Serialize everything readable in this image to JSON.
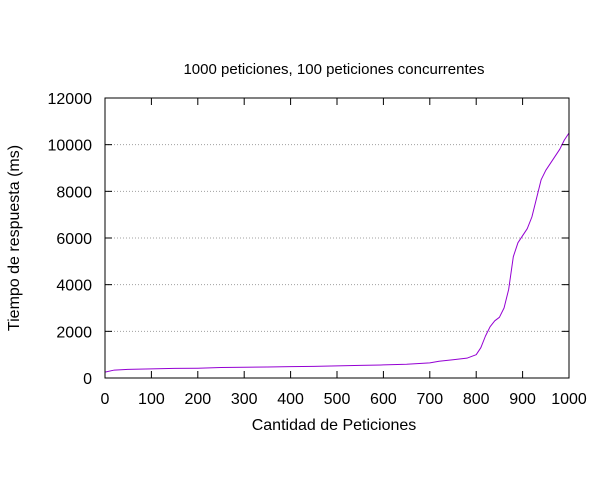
{
  "chart_data": {
    "type": "line",
    "title": "1000 peticiones, 100 peticiones concurrentes",
    "xlabel": "Cantidad de Peticiones",
    "ylabel": "Tiempo de respuesta (ms)",
    "xlim": [
      0,
      1000
    ],
    "ylim": [
      0,
      12000
    ],
    "x_ticks": [
      0,
      100,
      200,
      300,
      400,
      500,
      600,
      700,
      800,
      900,
      1000
    ],
    "y_ticks": [
      0,
      2000,
      4000,
      6000,
      8000,
      10000,
      12000
    ],
    "grid": "horizontal dotted",
    "legend": "none",
    "series": [
      {
        "color": "#9400d3",
        "x": [
          0,
          20,
          50,
          100,
          150,
          200,
          250,
          300,
          350,
          400,
          450,
          500,
          550,
          600,
          650,
          700,
          720,
          750,
          780,
          800,
          810,
          820,
          830,
          840,
          850,
          860,
          870,
          880,
          890,
          900,
          910,
          920,
          930,
          940,
          950,
          960,
          970,
          980,
          990,
          1000
        ],
        "y": [
          250,
          340,
          370,
          390,
          410,
          420,
          450,
          460,
          470,
          490,
          500,
          520,
          540,
          560,
          590,
          650,
          720,
          780,
          850,
          1000,
          1300,
          1800,
          2200,
          2450,
          2600,
          3000,
          3800,
          5200,
          5800,
          6100,
          6400,
          6900,
          7700,
          8500,
          8900,
          9200,
          9500,
          9800,
          10200,
          10500
        ]
      }
    ]
  }
}
